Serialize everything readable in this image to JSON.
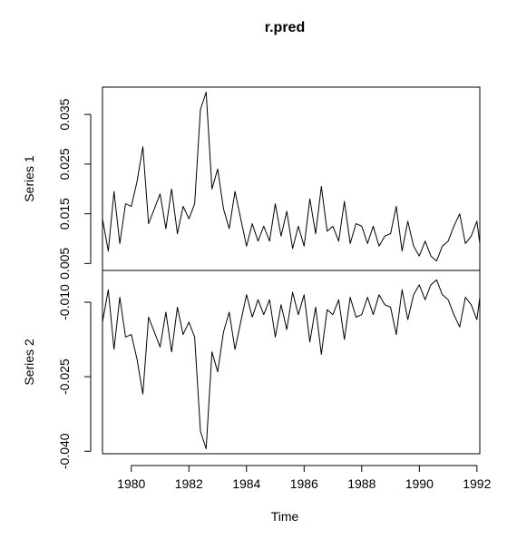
{
  "chart_data": {
    "type": "line",
    "title": "r.pred",
    "xlabel": "Time",
    "x_range": [
      1979.0,
      1992.1
    ],
    "x_ticks": [
      1980,
      1982,
      1984,
      1986,
      1988,
      1990,
      1992
    ],
    "x_tick_labels": [
      "1980",
      "1982",
      "1984",
      "1986",
      "1988",
      "1990",
      "1992"
    ],
    "grid": false,
    "legend": "none",
    "line_color": "#000000",
    "panels": [
      {
        "name": "Series 1",
        "ylabel": "Series 1",
        "ylim": [
          0.0036,
          0.0405
        ],
        "y_ticks": [
          0.005,
          0.015,
          0.025,
          0.035
        ],
        "y_tick_labels": [
          "0.005",
          "0.015",
          "0.025",
          "0.035"
        ],
        "x": [
          1979.0,
          1979.2,
          1979.4,
          1979.6,
          1979.8,
          1980.0,
          1980.2,
          1980.4,
          1980.6,
          1980.8,
          1981.0,
          1981.2,
          1981.4,
          1981.6,
          1981.8,
          1982.0,
          1982.2,
          1982.4,
          1982.6,
          1982.8,
          1983.0,
          1983.2,
          1983.4,
          1983.6,
          1983.8,
          1984.0,
          1984.2,
          1984.4,
          1984.6,
          1984.8,
          1985.0,
          1985.2,
          1985.4,
          1985.6,
          1985.8,
          1986.0,
          1986.2,
          1986.4,
          1986.6,
          1986.8,
          1987.0,
          1987.2,
          1987.4,
          1987.6,
          1987.8,
          1988.0,
          1988.2,
          1988.4,
          1988.6,
          1988.8,
          1989.0,
          1989.2,
          1989.4,
          1989.6,
          1989.8,
          1990.0,
          1990.2,
          1990.4,
          1990.6,
          1990.8,
          1991.0,
          1991.2,
          1991.4,
          1991.6,
          1991.8,
          1992.0,
          1992.1
        ],
        "values": [
          0.014,
          0.0075,
          0.0195,
          0.009,
          0.017,
          0.0165,
          0.0215,
          0.0285,
          0.013,
          0.016,
          0.019,
          0.012,
          0.02,
          0.011,
          0.0165,
          0.014,
          0.017,
          0.036,
          0.0395,
          0.02,
          0.024,
          0.016,
          0.012,
          0.0195,
          0.014,
          0.0085,
          0.013,
          0.0095,
          0.0125,
          0.0095,
          0.017,
          0.0105,
          0.0155,
          0.008,
          0.0125,
          0.0085,
          0.018,
          0.011,
          0.0205,
          0.0115,
          0.0125,
          0.0095,
          0.0175,
          0.009,
          0.013,
          0.0125,
          0.009,
          0.0125,
          0.0085,
          0.0105,
          0.011,
          0.0165,
          0.0075,
          0.0135,
          0.0085,
          0.0065,
          0.0095,
          0.0065,
          0.0055,
          0.0085,
          0.0095,
          0.0125,
          0.015,
          0.009,
          0.0105,
          0.0135,
          0.009
        ]
      },
      {
        "name": "Series 2",
        "ylabel": "Series 2",
        "ylim": [
          -0.0405,
          -0.0036
        ],
        "y_ticks": [
          -0.04,
          -0.025,
          -0.01
        ],
        "y_tick_labels": [
          "-0.040",
          "-0.025",
          "-0.010"
        ],
        "x": [
          1979.0,
          1979.2,
          1979.4,
          1979.6,
          1979.8,
          1980.0,
          1980.2,
          1980.4,
          1980.6,
          1980.8,
          1981.0,
          1981.2,
          1981.4,
          1981.6,
          1981.8,
          1982.0,
          1982.2,
          1982.4,
          1982.6,
          1982.8,
          1983.0,
          1983.2,
          1983.4,
          1983.6,
          1983.8,
          1984.0,
          1984.2,
          1984.4,
          1984.6,
          1984.8,
          1985.0,
          1985.2,
          1985.4,
          1985.6,
          1985.8,
          1986.0,
          1986.2,
          1986.4,
          1986.6,
          1986.8,
          1987.0,
          1987.2,
          1987.4,
          1987.6,
          1987.8,
          1988.0,
          1988.2,
          1988.4,
          1988.6,
          1988.8,
          1989.0,
          1989.2,
          1989.4,
          1989.6,
          1989.8,
          1990.0,
          1990.2,
          1990.4,
          1990.6,
          1990.8,
          1991.0,
          1991.2,
          1991.4,
          1991.6,
          1991.8,
          1992.0,
          1992.1
        ],
        "values": [
          -0.014,
          -0.0075,
          -0.0195,
          -0.009,
          -0.017,
          -0.0165,
          -0.0215,
          -0.0285,
          -0.013,
          -0.016,
          -0.019,
          -0.012,
          -0.02,
          -0.011,
          -0.0165,
          -0.014,
          -0.017,
          -0.036,
          -0.0395,
          -0.02,
          -0.024,
          -0.016,
          -0.012,
          -0.0195,
          -0.014,
          -0.0085,
          -0.013,
          -0.0095,
          -0.0125,
          -0.0095,
          -0.017,
          -0.0105,
          -0.0155,
          -0.008,
          -0.0125,
          -0.0085,
          -0.018,
          -0.011,
          -0.0205,
          -0.0115,
          -0.0125,
          -0.0095,
          -0.0175,
          -0.009,
          -0.013,
          -0.0125,
          -0.009,
          -0.0125,
          -0.0085,
          -0.0105,
          -0.011,
          -0.0165,
          -0.0075,
          -0.0135,
          -0.0085,
          -0.0065,
          -0.0095,
          -0.0065,
          -0.0055,
          -0.0085,
          -0.0095,
          -0.0125,
          -0.015,
          -0.009,
          -0.0105,
          -0.0135,
          -0.009
        ]
      }
    ]
  }
}
